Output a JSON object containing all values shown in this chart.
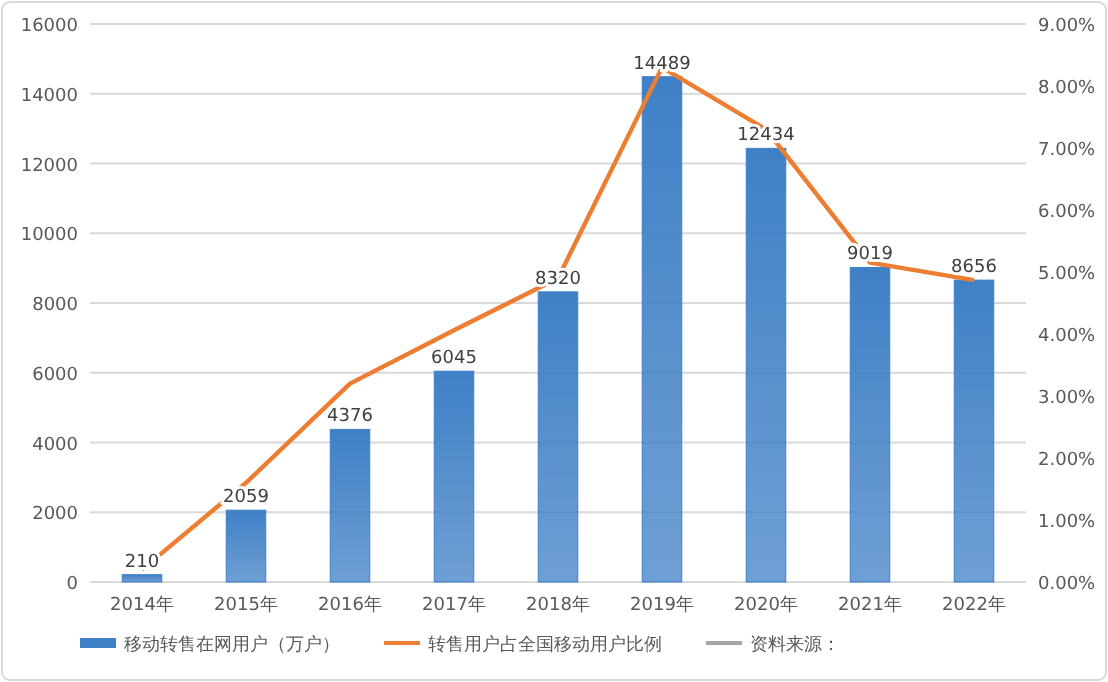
{
  "chart_data": {
    "type": "bar",
    "categories": [
      "2014年",
      "2015年",
      "2016年",
      "2017年",
      "2018年",
      "2019年",
      "2020年",
      "2021年",
      "2022年"
    ],
    "series": [
      {
        "name": "移动转售在网用户（万户）",
        "color": "#3f80c6",
        "values": [
          210,
          2059,
          4376,
          6045,
          8320,
          14489,
          12434,
          9019,
          8656
        ],
        "value_labels": [
          "210",
          "2059",
          "4376",
          "6045",
          "8320",
          "14489",
          "12434",
          "9019",
          "8656"
        ]
      },
      {
        "name": "转售用户占全国移动用户比例",
        "type": "line",
        "axis": "y2",
        "color": "#ed7d31",
        "values": [
          0.2,
          1.6,
          3.2,
          4.06,
          4.9,
          8.3,
          7.3,
          5.15,
          4.87
        ]
      }
    ],
    "ylim": [
      0,
      16000
    ],
    "yticks": [
      0,
      2000,
      4000,
      6000,
      8000,
      10000,
      12000,
      14000,
      16000
    ],
    "y2lim": [
      0,
      9
    ],
    "y2ticks": [
      {
        "value": 0,
        "label": "0.00%"
      },
      {
        "value": 1,
        "label": "1.00%"
      },
      {
        "value": 2,
        "label": "2.00%"
      },
      {
        "value": 3,
        "label": "3.00%"
      },
      {
        "value": 4,
        "label": "4.00%"
      },
      {
        "value": 5,
        "label": "5.00%"
      },
      {
        "value": 6,
        "label": "6.00%"
      },
      {
        "value": 7,
        "label": "7.00%"
      },
      {
        "value": 8,
        "label": "8.00%"
      },
      {
        "value": 9,
        "label": "9.00%"
      }
    ],
    "grid": "y",
    "legend": "bottom",
    "marker": "none",
    "annotations": [
      "资料来源："
    ]
  }
}
